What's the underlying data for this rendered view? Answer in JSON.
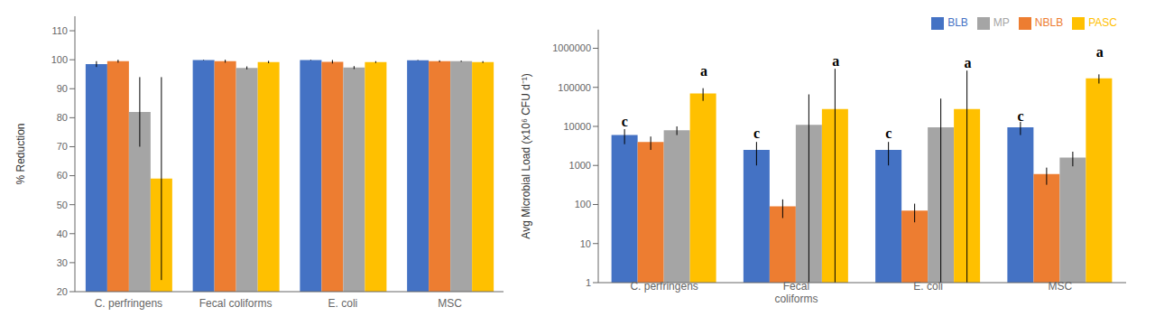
{
  "chart_data": [
    {
      "type": "bar",
      "categories": [
        "C. perfringens",
        "Fecal coliforms",
        "E. coli",
        "MSC"
      ],
      "ylabel": "% Reduction",
      "ylim": [
        20,
        115
      ],
      "yticks": [
        20,
        30,
        40,
        50,
        60,
        70,
        80,
        90,
        100,
        110
      ],
      "grid": false,
      "series": [
        {
          "name": "BLB",
          "color": "#4472C4",
          "values": [
            98.5,
            99.9,
            99.9,
            99.8
          ],
          "errors": [
            1.0,
            0.1,
            0.1,
            0.1
          ]
        },
        {
          "name": "NBLB",
          "color": "#ED7D31",
          "values": [
            99.5,
            99.5,
            99.3,
            99.5
          ],
          "errors": [
            0.5,
            0.5,
            0.6,
            0.3
          ]
        },
        {
          "name": "MP",
          "color": "#A5A5A5",
          "values": [
            82.0,
            97.2,
            97.3,
            99.5
          ],
          "errors": [
            12.0,
            0.5,
            0.5,
            0.2
          ]
        },
        {
          "name": "PASC",
          "color": "#FFC000",
          "values": [
            59.0,
            99.2,
            99.2,
            99.2
          ],
          "errors": [
            35.0,
            0.4,
            0.3,
            0.3
          ]
        }
      ]
    },
    {
      "type": "bar",
      "categories": [
        "C. perfringens",
        "Fecal\ncoliforms",
        "E. coli",
        "MSC"
      ],
      "ylabel": "Avg Microbial Load (x10⁶ CFU d⁻¹)",
      "log": "y",
      "ylim": [
        1,
        3000000
      ],
      "yticks": [
        1,
        10,
        100,
        1000,
        10000,
        100000,
        1000000
      ],
      "grid": false,
      "legend": "upper right",
      "series": [
        {
          "name": "BLB",
          "color": "#4472C4",
          "values": [
            6000,
            2500,
            2500,
            9500
          ],
          "errors": [
            2500,
            1500,
            1500,
            3500
          ]
        },
        {
          "name": "NBLB",
          "color": "#ED7D31",
          "values": [
            4000,
            90,
            70,
            600
          ],
          "errors": [
            1500,
            45,
            35,
            280
          ]
        },
        {
          "name": "MP",
          "color": "#A5A5A5",
          "values": [
            8000,
            11000,
            9500,
            1600
          ],
          "errors": [
            2000,
            55000,
            42000,
            650
          ]
        },
        {
          "name": "PASC",
          "color": "#FFC000",
          "values": [
            70000,
            28000,
            28000,
            170000
          ],
          "errors": [
            25000,
            270000,
            240000,
            45000
          ]
        }
      ],
      "annotations": [
        {
          "text": "c",
          "series": "BLB",
          "y": [
            10000,
            5000,
            5000,
            14000
          ]
        },
        {
          "text": "a",
          "series": "PASC",
          "y": [
            200000,
            350000,
            320000,
            600000
          ]
        }
      ]
    }
  ]
}
